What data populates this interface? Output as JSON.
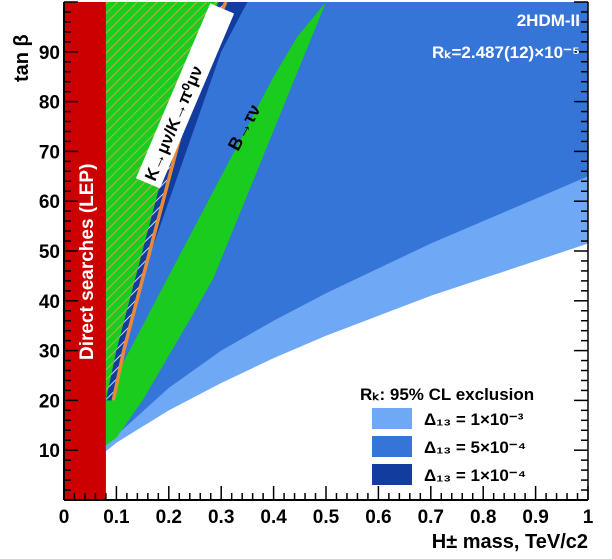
{
  "chart_data": {
    "type": "area",
    "title": "",
    "xlabel": "H± mass, TeV/c2",
    "ylabel": "tan β",
    "xlim": [
      0,
      1
    ],
    "ylim": [
      0,
      100
    ],
    "x_ticks": [
      "0",
      "0.1",
      "0.2",
      "0.3",
      "0.4",
      "0.5",
      "0.6",
      "0.7",
      "0.8",
      "0.9",
      "1"
    ],
    "y_ticks": [
      "10",
      "20",
      "30",
      "40",
      "50",
      "60",
      "70",
      "80",
      "90"
    ],
    "annotations": {
      "model": "2HDM-II",
      "rk_value": "Rₖ=2.487(12)×10⁻⁵",
      "lep_label": "Direct searches (LEP)",
      "kaon_label": "K→μν/K→π⁰μν",
      "btau_label": "B→τν"
    },
    "legend": {
      "title": "Rₖ: 95% CL exclusion",
      "placement": "bottom-right",
      "entries": [
        {
          "label": "Δ₁₃ = 1×10⁻³",
          "color": "#6fa8f5"
        },
        {
          "label": "Δ₁₃ = 5×10⁻⁴",
          "color": "#3575d8"
        },
        {
          "label": "Δ₁₃ = 1×10⁻⁴",
          "color": "#123c9e"
        }
      ]
    },
    "regions": [
      {
        "name": "Δ₁₃ = 1×10⁻³",
        "color": "#6fa8f5",
        "boundary": {
          "x": [
            0.08,
            0.1,
            0.2,
            0.3,
            0.4,
            0.5,
            0.6,
            0.7,
            0.8,
            0.9,
            1.0
          ],
          "y": [
            9.8,
            11.5,
            18,
            23.5,
            28.5,
            33,
            37,
            41,
            44.5,
            48,
            51.5
          ]
        }
      },
      {
        "name": "Δ₁₃ = 5×10⁻⁴",
        "color": "#3575d8",
        "boundary": {
          "x": [
            0.08,
            0.1,
            0.2,
            0.3,
            0.4,
            0.5,
            0.6,
            0.7,
            0.8,
            0.9,
            1.0
          ],
          "y": [
            11,
            13,
            22.5,
            30,
            36,
            41.5,
            46.5,
            51.5,
            56,
            60.5,
            65
          ]
        }
      },
      {
        "name": "Δ₁₃ = 1×10⁻⁴",
        "color": "#123c9e",
        "boundary": {
          "x": [
            0.08,
            0.1,
            0.15,
            0.2,
            0.25,
            0.3,
            0.35,
            0.4,
            0.45,
            0.5,
            0.55,
            0.6
          ],
          "y": [
            24,
            30,
            45,
            60,
            75,
            90,
            100,
            100,
            100,
            100,
            100,
            100
          ]
        }
      },
      {
        "name": "B→τν",
        "color": "#19cc1e",
        "lower": {
          "x": [
            0.08,
            0.1,
            0.15,
            0.2,
            0.25,
            0.285
          ],
          "y": [
            11,
            12.5,
            20,
            29,
            38,
            44.5
          ]
        },
        "upper": {
          "x": [
            0.08,
            0.1,
            0.15,
            0.2,
            0.25,
            0.3,
            0.35,
            0.4,
            0.445,
            0.5
          ],
          "y": [
            20,
            25,
            35,
            45,
            55,
            65,
            75,
            85,
            93,
            100
          ]
        }
      },
      {
        "name": "K→μν/K→π⁰μν",
        "color": "#19cc1e",
        "hatch": true,
        "right_edge": {
          "x": [
            0.08,
            0.1,
            0.15,
            0.2,
            0.25,
            0.295
          ],
          "y": [
            20,
            30,
            50,
            70,
            90,
            100
          ]
        }
      },
      {
        "name": "Direct searches (LEP)",
        "color": "#cc0000",
        "x_range": [
          0,
          0.08
        ],
        "y_range": [
          0,
          100
        ]
      }
    ]
  }
}
